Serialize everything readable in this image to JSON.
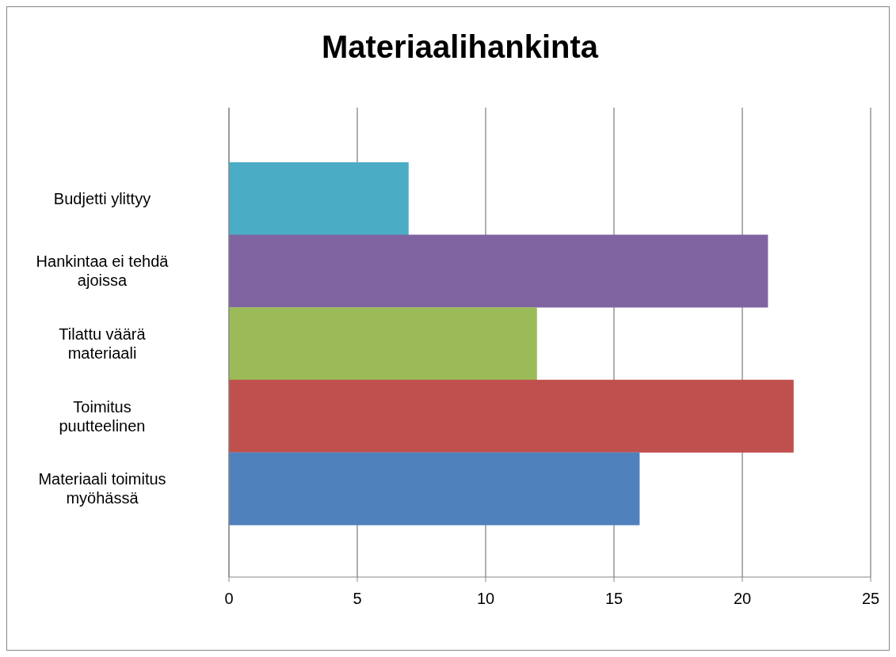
{
  "chart_data": {
    "type": "bar",
    "orientation": "horizontal",
    "title": "Materiaalihankinta",
    "categories": [
      "Budjetti ylittyy",
      "Hankintaa ei tehdä ajoissa",
      "Tilattu väärä materiaali",
      "Toimitus puutteelinen",
      "Materiaali toimitus myöhässä"
    ],
    "values": [
      7,
      21,
      12,
      22,
      16
    ],
    "colors": [
      "#4bacc6",
      "#8064a2",
      "#9bbb59",
      "#c0504d",
      "#4f81bd"
    ],
    "xlim": [
      0,
      25
    ],
    "xticks": [
      0,
      5,
      10,
      15,
      20,
      25
    ],
    "grid": "x",
    "legend": false
  }
}
